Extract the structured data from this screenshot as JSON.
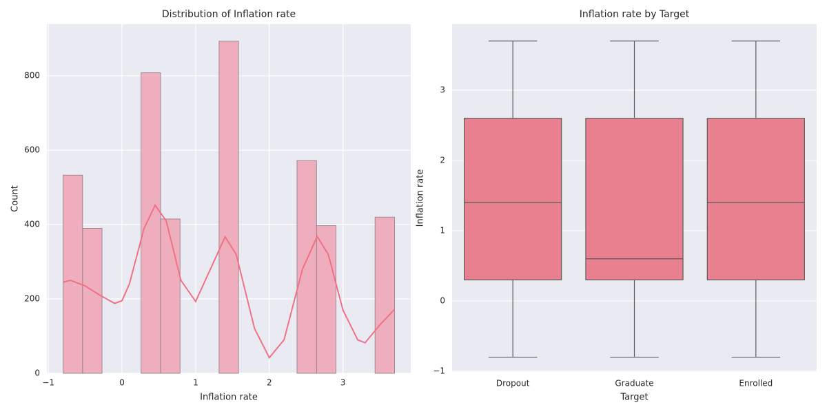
{
  "chart_data": [
    {
      "type": "histogram",
      "title": "Distribution of Inflation rate",
      "x_label": "Inflation rate",
      "y_label": "Count",
      "bins": [
        -0.8,
        -0.535,
        -0.271,
        -0.006,
        0.259,
        0.524,
        0.788,
        1.053,
        1.318,
        1.582,
        1.847,
        2.112,
        2.376,
        2.641,
        2.906,
        3.171,
        3.435,
        3.7
      ],
      "counts": [
        533,
        390,
        0,
        0,
        808,
        415,
        0,
        0,
        893,
        0,
        0,
        0,
        572,
        397,
        0,
        0,
        420
      ],
      "color": "#f0a3b5",
      "edge_color": "#8a7a80",
      "kde": {
        "color": "#f07186",
        "x": [
          -0.8,
          -0.7,
          -0.5,
          -0.3,
          -0.1,
          0,
          0.1,
          0.3,
          0.45,
          0.6,
          0.8,
          1.0,
          1.2,
          1.4,
          1.55,
          1.8,
          2.0,
          2.2,
          2.45,
          2.65,
          2.8,
          3.0,
          3.2,
          3.3,
          3.5,
          3.7
        ],
        "values": [
          245,
          250,
          235,
          210,
          188,
          195,
          240,
          390,
          452,
          410,
          250,
          193,
          280,
          367,
          320,
          120,
          42,
          90,
          280,
          368,
          320,
          170,
          90,
          82,
          130,
          172
        ]
      },
      "xlim": [
        -1.02,
        3.92
      ],
      "ylim": [
        0,
        939
      ],
      "xticks": [
        {
          "value": -1,
          "label": "−1"
        },
        0,
        1,
        2,
        3
      ],
      "yticks": [
        0,
        200,
        400,
        600,
        800
      ],
      "grid": true
    },
    {
      "type": "box",
      "title": "Inflation rate by Target",
      "x_label": "Target",
      "y_label": "Inflation rate",
      "categories": [
        "Dropout",
        "Graduate",
        "Enrolled"
      ],
      "boxes": [
        {
          "min": -0.8,
          "q1": 0.3,
          "median": 1.4,
          "q3": 2.6,
          "max": 3.7
        },
        {
          "min": -0.8,
          "q1": 0.3,
          "median": 0.6,
          "q3": 2.6,
          "max": 3.7
        },
        {
          "min": -0.8,
          "q1": 0.3,
          "median": 1.4,
          "q3": 2.6,
          "max": 3.7
        }
      ],
      "color": "#e8808f",
      "edge_color": "#5a5a5a",
      "ylim": [
        -1.01,
        3.94
      ],
      "yticks": [
        {
          "value": -1,
          "label": "−1"
        },
        0,
        1,
        2,
        3
      ],
      "grid": true
    }
  ]
}
